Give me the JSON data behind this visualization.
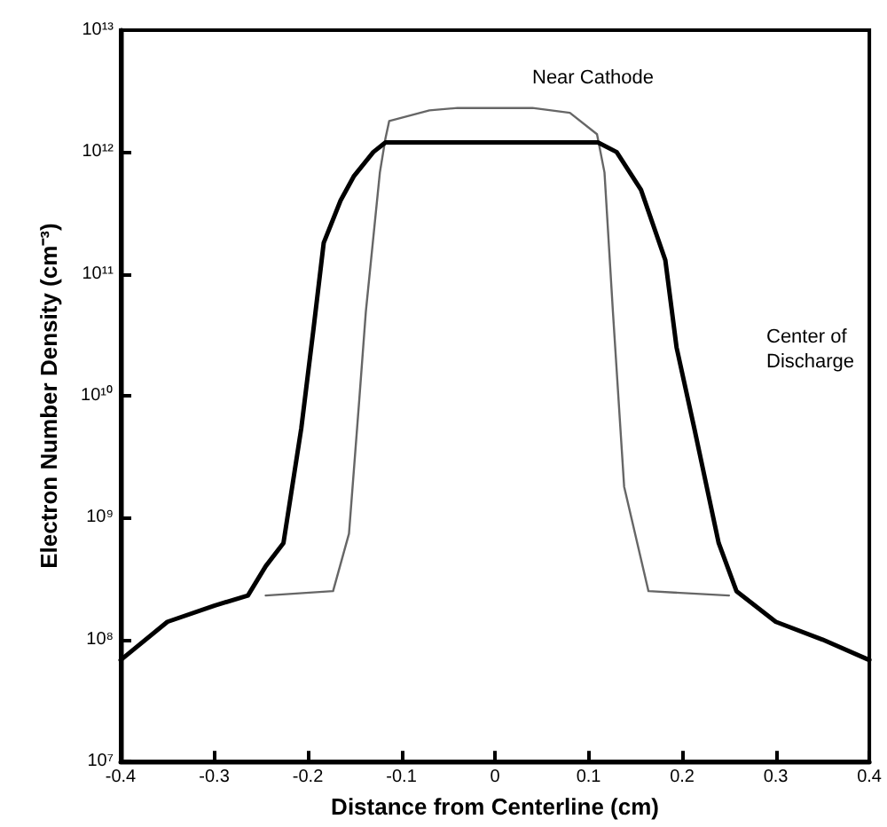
{
  "chart_data": {
    "type": "line",
    "xlabel": "Distance from Centerline (cm)",
    "ylabel": "Electron Number Density (cm⁻³)",
    "log": "y",
    "grid": false,
    "marker": "none",
    "line_style": "solid",
    "xlim": [
      -0.4,
      0.4
    ],
    "xticks": [
      {
        "value": -0.4,
        "label": "-0.4"
      },
      {
        "value": -0.3,
        "label": "-0.3"
      },
      {
        "value": -0.2,
        "label": "-0.2"
      },
      {
        "value": -0.1,
        "label": "-0.1"
      },
      {
        "value": 0,
        "label": "0"
      },
      {
        "value": 0.1,
        "label": "0.1"
      },
      {
        "value": 0.2,
        "label": "0.2"
      },
      {
        "value": 0.3,
        "label": "0.3"
      },
      {
        "value": 0.4,
        "label": "0.4"
      }
    ],
    "ylim": [
      10000000.0,
      10000000000000.0
    ],
    "yticks": [
      {
        "value": 10000000.0,
        "label": "10⁷"
      },
      {
        "value": 100000000.0,
        "label": "10⁸"
      },
      {
        "value": 1000000000.0,
        "label": "10⁹"
      },
      {
        "value": 10000000000.0,
        "label": "10¹⁰"
      },
      {
        "value": 100000000000.0,
        "label": "10¹¹"
      },
      {
        "value": 1000000000000.0,
        "label": "10¹²"
      },
      {
        "value": 10000000000000.0,
        "label": "10¹³"
      }
    ],
    "series": [
      {
        "color": "#000000",
        "x": [
          -0.4,
          -0.35,
          -0.3,
          -0.264,
          -0.245,
          -0.226,
          -0.207,
          -0.194,
          -0.183,
          -0.165,
          -0.151,
          -0.13,
          -0.117,
          0,
          0.11,
          0.13,
          0.156,
          0.182,
          0.194,
          0.213,
          0.239,
          0.258,
          0.3,
          0.35,
          0.4
        ],
        "values": [
          68000000.0,
          140000000.0,
          190000000.0,
          230000000.0,
          400000000.0,
          620000000.0,
          5400000000.0,
          35000000000.0,
          180000000000.0,
          400000000000.0,
          630000000000.0,
          1000000000000.0,
          1200000000000.0,
          1200000000000.0,
          1200000000000.0,
          1000000000000.0,
          490000000000.0,
          130000000000.0,
          25000000000.0,
          5400000000.0,
          620000000.0,
          250000000.0,
          140000000.0,
          100000000.0,
          68000000.0
        ]
      },
      {
        "color": "#666666",
        "x": [
          -0.245,
          -0.173,
          -0.156,
          -0.145,
          -0.138,
          -0.123,
          -0.117,
          -0.113,
          -0.07,
          -0.04,
          0,
          0.04,
          0.08,
          0.109,
          0.117,
          0.126,
          0.138,
          0.164,
          0.25
        ],
        "values": [
          230000000.0,
          250000000.0,
          740000000.0,
          9300000000.0,
          49000000000.0,
          680000000000.0,
          1300000000000.0,
          1800000000000.0,
          2200000000000.0,
          2300000000000.0,
          2300000000000.0,
          2300000000000.0,
          2100000000000.0,
          1400000000000.0,
          680000000000.0,
          49000000000.0,
          1800000000.0,
          250000000.0,
          230000000.0
        ]
      }
    ],
    "annotations": [
      "Near Cathode",
      "Center of\nDischarge"
    ]
  }
}
